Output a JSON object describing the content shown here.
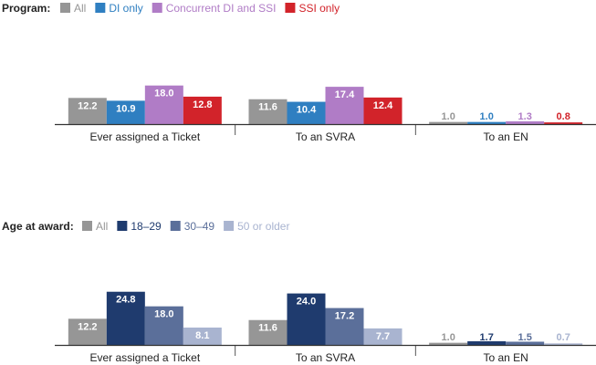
{
  "chart_data": [
    {
      "type": "bar",
      "legend_title": "Program:",
      "categories": [
        "Ever assigned a Ticket",
        "To an SVRA",
        "To an EN"
      ],
      "series": [
        {
          "name": "All",
          "color": "#969696",
          "values": [
            12.2,
            11.6,
            1.0
          ]
        },
        {
          "name": "DI only",
          "color": "#2f7fc1",
          "values": [
            10.9,
            10.4,
            1.0
          ]
        },
        {
          "name": "Concurrent DI and SSI",
          "color": "#b07cc6",
          "values": [
            18.0,
            17.4,
            1.3
          ]
        },
        {
          "name": "SSI only",
          "color": "#d2232a",
          "values": [
            12.8,
            12.4,
            0.8
          ]
        }
      ],
      "ylim": [
        0,
        25
      ]
    },
    {
      "type": "bar",
      "legend_title": "Age at award:",
      "categories": [
        "Ever assigned a Ticket",
        "To an SVRA",
        "To an EN"
      ],
      "series": [
        {
          "name": "All",
          "color": "#969696",
          "values": [
            12.2,
            11.6,
            1.0
          ]
        },
        {
          "name": "18–29",
          "color": "#1f3b6e",
          "values": [
            24.8,
            24.0,
            1.7
          ]
        },
        {
          "name": "30–49",
          "color": "#5b6f9a",
          "values": [
            18.0,
            17.2,
            1.5
          ]
        },
        {
          "name": "50 or older",
          "color": "#a9b4d0",
          "values": [
            8.1,
            7.7,
            0.7
          ]
        }
      ],
      "ylim": [
        0,
        25
      ]
    }
  ]
}
